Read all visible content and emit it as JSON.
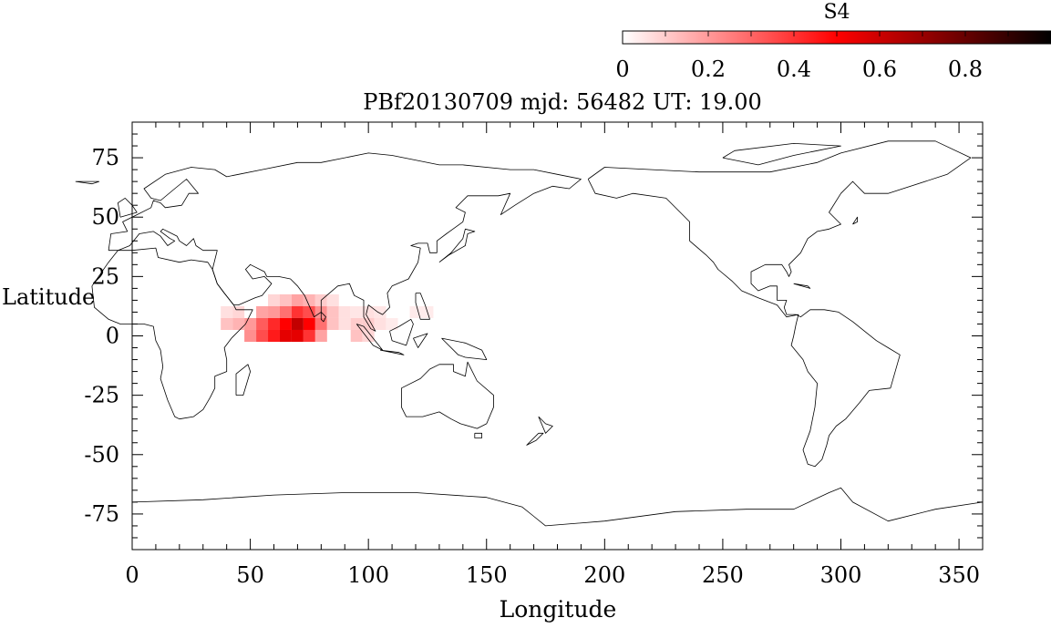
{
  "map": {
    "title": "PBf20130709  mjd: 56482  UT:  19.00",
    "xlabel": "Longitude",
    "ylabel": "Latitude",
    "xlim": [
      0,
      360
    ],
    "ylim": [
      -90,
      90
    ],
    "x_ticks": [
      0,
      50,
      100,
      150,
      200,
      250,
      300,
      350
    ],
    "x_tick_labels": [
      "0",
      "50",
      "100",
      "150",
      "200",
      "250",
      "300",
      "350"
    ],
    "y_ticks": [
      75,
      50,
      25,
      0,
      -25,
      -50,
      -75
    ],
    "y_tick_labels": [
      "75",
      "50",
      "25",
      "0",
      "-25",
      "-50",
      "-75"
    ],
    "coastline_color": "#000000"
  },
  "colorbar": {
    "label": "S4",
    "range": [
      0,
      1
    ],
    "ticks": [
      0,
      0.2,
      0.4,
      0.6,
      0.8
    ],
    "tick_labels": [
      "0",
      "0.2",
      "0.4",
      "0.6",
      "0.8"
    ],
    "colors": [
      "#ffffff",
      "#ff0000",
      "#000000"
    ]
  },
  "s4_cells": [
    {
      "lon": 40,
      "lat": 10,
      "s4": 0.06
    },
    {
      "lon": 45,
      "lat": 10,
      "s4": 0.08
    },
    {
      "lon": 40,
      "lat": 5,
      "s4": 0.12
    },
    {
      "lon": 45,
      "lat": 5,
      "s4": 0.15
    },
    {
      "lon": 50,
      "lat": 5,
      "s4": 0.2
    },
    {
      "lon": 50,
      "lat": 0,
      "s4": 0.22
    },
    {
      "lon": 55,
      "lat": 10,
      "s4": 0.18
    },
    {
      "lon": 55,
      "lat": 5,
      "s4": 0.32
    },
    {
      "lon": 55,
      "lat": 0,
      "s4": 0.35
    },
    {
      "lon": 60,
      "lat": 15,
      "s4": 0.08
    },
    {
      "lon": 60,
      "lat": 10,
      "s4": 0.2
    },
    {
      "lon": 60,
      "lat": 5,
      "s4": 0.42
    },
    {
      "lon": 60,
      "lat": 0,
      "s4": 0.45
    },
    {
      "lon": 65,
      "lat": 15,
      "s4": 0.12
    },
    {
      "lon": 65,
      "lat": 10,
      "s4": 0.28
    },
    {
      "lon": 65,
      "lat": 5,
      "s4": 0.5
    },
    {
      "lon": 65,
      "lat": 0,
      "s4": 0.55
    },
    {
      "lon": 70,
      "lat": 15,
      "s4": 0.18
    },
    {
      "lon": 70,
      "lat": 10,
      "s4": 0.4
    },
    {
      "lon": 70,
      "lat": 5,
      "s4": 0.62
    },
    {
      "lon": 70,
      "lat": 0,
      "s4": 0.55
    },
    {
      "lon": 75,
      "lat": 15,
      "s4": 0.15
    },
    {
      "lon": 75,
      "lat": 10,
      "s4": 0.35
    },
    {
      "lon": 75,
      "lat": 5,
      "s4": 0.5
    },
    {
      "lon": 75,
      "lat": 0,
      "s4": 0.4
    },
    {
      "lon": 80,
      "lat": 15,
      "s4": 0.1
    },
    {
      "lon": 80,
      "lat": 10,
      "s4": 0.22
    },
    {
      "lon": 80,
      "lat": 5,
      "s4": 0.28
    },
    {
      "lon": 80,
      "lat": 0,
      "s4": 0.18
    },
    {
      "lon": 85,
      "lat": 15,
      "s4": 0.06
    },
    {
      "lon": 85,
      "lat": 10,
      "s4": 0.12
    },
    {
      "lon": 85,
      "lat": 5,
      "s4": 0.12
    },
    {
      "lon": 90,
      "lat": 10,
      "s4": 0.06
    },
    {
      "lon": 90,
      "lat": 5,
      "s4": 0.06
    },
    {
      "lon": 95,
      "lat": 10,
      "s4": 0.05
    },
    {
      "lon": 95,
      "lat": 5,
      "s4": 0.1
    },
    {
      "lon": 95,
      "lat": 0,
      "s4": 0.12
    },
    {
      "lon": 100,
      "lat": 10,
      "s4": 0.06
    },
    {
      "lon": 100,
      "lat": 5,
      "s4": 0.1
    },
    {
      "lon": 100,
      "lat": 0,
      "s4": 0.08
    },
    {
      "lon": 105,
      "lat": 10,
      "s4": 0.05
    },
    {
      "lon": 105,
      "lat": 5,
      "s4": 0.06
    },
    {
      "lon": 110,
      "lat": 5,
      "s4": 0.04
    },
    {
      "lon": 120,
      "lat": 10,
      "s4": 0.04
    },
    {
      "lon": 125,
      "lat": 10,
      "s4": 0.04
    }
  ],
  "coastlines": [
    [
      [
        -17,
        21
      ],
      [
        -16,
        12
      ],
      [
        -10,
        7
      ],
      [
        -5,
        5
      ],
      [
        5,
        5
      ],
      [
        9,
        4
      ],
      [
        10,
        -2
      ],
      [
        12,
        -6
      ],
      [
        13,
        -13
      ],
      [
        12,
        -18
      ],
      [
        15,
        -27
      ],
      [
        18,
        -34
      ],
      [
        20,
        -35
      ],
      [
        26,
        -34
      ],
      [
        30,
        -31
      ],
      [
        33,
        -26
      ],
      [
        35,
        -22
      ],
      [
        35,
        -17
      ],
      [
        40,
        -15
      ],
      [
        40,
        -10
      ],
      [
        39,
        -5
      ],
      [
        42,
        -1
      ],
      [
        48,
        5
      ],
      [
        51,
        11
      ],
      [
        44,
        11
      ],
      [
        43,
        13
      ],
      [
        39,
        18
      ],
      [
        36,
        22
      ],
      [
        34,
        28
      ],
      [
        32,
        31
      ],
      [
        25,
        32
      ],
      [
        20,
        31
      ],
      [
        11,
        33
      ],
      [
        10,
        37
      ],
      [
        0,
        36
      ],
      [
        -6,
        36
      ],
      [
        -10,
        31
      ],
      [
        -17,
        21
      ]
    ],
    [
      [
        44,
        -25
      ],
      [
        47,
        -25
      ],
      [
        50,
        -15
      ],
      [
        49,
        -12
      ],
      [
        44,
        -16
      ],
      [
        44,
        -25
      ]
    ],
    [
      [
        -10,
        36
      ],
      [
        -9,
        43
      ],
      [
        -2,
        44
      ],
      [
        -4,
        48
      ],
      [
        2,
        51
      ],
      [
        8,
        54
      ],
      [
        9,
        57
      ],
      [
        12,
        56
      ],
      [
        14,
        54
      ],
      [
        21,
        55
      ],
      [
        24,
        60
      ],
      [
        28,
        60
      ],
      [
        23,
        66
      ],
      [
        18,
        62
      ],
      [
        12,
        57
      ],
      [
        8,
        58
      ],
      [
        5,
        62
      ],
      [
        14,
        68
      ],
      [
        25,
        71
      ],
      [
        35,
        70
      ],
      [
        40,
        67
      ],
      [
        45,
        68
      ],
      [
        55,
        70
      ],
      [
        70,
        73
      ],
      [
        80,
        73
      ],
      [
        100,
        77
      ],
      [
        110,
        76
      ],
      [
        130,
        72
      ],
      [
        140,
        72
      ],
      [
        160,
        70
      ],
      [
        170,
        70
      ],
      [
        180,
        68
      ],
      [
        190,
        66
      ],
      [
        185,
        62
      ],
      [
        178,
        63
      ],
      [
        170,
        60
      ],
      [
        162,
        55
      ],
      [
        156,
        51
      ],
      [
        160,
        60
      ],
      [
        155,
        59
      ],
      [
        142,
        59
      ],
      [
        137,
        54
      ],
      [
        141,
        52
      ],
      [
        140,
        48
      ],
      [
        133,
        43
      ],
      [
        129,
        40
      ],
      [
        129,
        35
      ],
      [
        126,
        35
      ],
      [
        125,
        39
      ],
      [
        121,
        39
      ],
      [
        118,
        38
      ],
      [
        122,
        37
      ],
      [
        121,
        31
      ],
      [
        117,
        24
      ],
      [
        110,
        21
      ],
      [
        108,
        18
      ],
      [
        109,
        12
      ],
      [
        106,
        9
      ],
      [
        104,
        10
      ],
      [
        100,
        13
      ],
      [
        99,
        9
      ],
      [
        103,
        2
      ],
      [
        101,
        3
      ],
      [
        98,
        8
      ],
      [
        98,
        15
      ],
      [
        94,
        17
      ],
      [
        92,
        22
      ],
      [
        87,
        21
      ],
      [
        80,
        15
      ],
      [
        80,
        10
      ],
      [
        77,
        8
      ],
      [
        73,
        17
      ],
      [
        70,
        21
      ],
      [
        67,
        24
      ],
      [
        62,
        25
      ],
      [
        57,
        25
      ],
      [
        56,
        27
      ],
      [
        50,
        30
      ],
      [
        48,
        28
      ],
      [
        51,
        24
      ],
      [
        56,
        25
      ],
      [
        59,
        22
      ],
      [
        55,
        17
      ],
      [
        52,
        16
      ],
      [
        45,
        13
      ],
      [
        43,
        13
      ],
      [
        39,
        18
      ],
      [
        36,
        22
      ],
      [
        34,
        28
      ],
      [
        36,
        36
      ],
      [
        30,
        36
      ],
      [
        27,
        38
      ],
      [
        26,
        41
      ],
      [
        23,
        38
      ],
      [
        20,
        40
      ],
      [
        19,
        42
      ],
      [
        13,
        45
      ],
      [
        12,
        44
      ],
      [
        16,
        41
      ],
      [
        18,
        40
      ],
      [
        15,
        38
      ],
      [
        12,
        42
      ],
      [
        9,
        44
      ],
      [
        3,
        43
      ],
      [
        -1,
        38
      ],
      [
        -6,
        36
      ],
      [
        -10,
        36
      ]
    ],
    [
      [
        80,
        10
      ],
      [
        82,
        8
      ],
      [
        81,
        6
      ],
      [
        80,
        7
      ],
      [
        80,
        10
      ]
    ],
    [
      [
        95,
        5
      ],
      [
        98,
        4
      ],
      [
        106,
        -6
      ],
      [
        102,
        -4
      ],
      [
        95,
        5
      ]
    ],
    [
      [
        105,
        -6
      ],
      [
        115,
        -8
      ],
      [
        113,
        -7
      ],
      [
        105,
        -6
      ]
    ],
    [
      [
        109,
        2
      ],
      [
        113,
        4
      ],
      [
        118,
        7
      ],
      [
        119,
        5
      ],
      [
        117,
        -1
      ],
      [
        116,
        -4
      ],
      [
        110,
        -2
      ],
      [
        109,
        2
      ]
    ],
    [
      [
        119,
        -1
      ],
      [
        125,
        1
      ],
      [
        121,
        -5
      ],
      [
        119,
        -1
      ]
    ],
    [
      [
        131,
        -1
      ],
      [
        141,
        -3
      ],
      [
        148,
        -6
      ],
      [
        150,
        -10
      ],
      [
        141,
        -9
      ],
      [
        138,
        -8
      ],
      [
        131,
        -1
      ]
    ],
    [
      [
        120,
        18
      ],
      [
        122,
        18
      ],
      [
        124,
        13
      ],
      [
        126,
        7
      ],
      [
        122,
        7
      ],
      [
        120,
        14
      ],
      [
        120,
        18
      ]
    ],
    [
      [
        130,
        31
      ],
      [
        134,
        34
      ],
      [
        141,
        38
      ],
      [
        142,
        43
      ],
      [
        145,
        44
      ],
      [
        141,
        45
      ],
      [
        140,
        41
      ],
      [
        135,
        35
      ],
      [
        130,
        31
      ]
    ],
    [
      [
        114,
        -22
      ],
      [
        114,
        -30
      ],
      [
        116,
        -34
      ],
      [
        123,
        -34
      ],
      [
        130,
        -32
      ],
      [
        135,
        -35
      ],
      [
        139,
        -37
      ],
      [
        146,
        -39
      ],
      [
        150,
        -37
      ],
      [
        153,
        -30
      ],
      [
        153,
        -25
      ],
      [
        146,
        -19
      ],
      [
        142,
        -11
      ],
      [
        141,
        -17
      ],
      [
        136,
        -15
      ],
      [
        136,
        -12
      ],
      [
        130,
        -12
      ],
      [
        126,
        -14
      ],
      [
        122,
        -18
      ],
      [
        114,
        -22
      ]
    ],
    [
      [
        145,
        -41
      ],
      [
        148,
        -41
      ],
      [
        148,
        -43
      ],
      [
        145,
        -43
      ],
      [
        145,
        -41
      ]
    ],
    [
      [
        172,
        -34
      ],
      [
        175,
        -37
      ],
      [
        178,
        -38
      ],
      [
        175,
        -41
      ],
      [
        172,
        -34
      ]
    ],
    [
      [
        172,
        -41
      ],
      [
        174,
        -41
      ],
      [
        171,
        -44
      ],
      [
        167,
        -46
      ],
      [
        172,
        -41
      ]
    ],
    [
      [
        193,
        66
      ],
      [
        200,
        71
      ],
      [
        220,
        70
      ],
      [
        240,
        69
      ],
      [
        270,
        69
      ],
      [
        290,
        73
      ],
      [
        300,
        77
      ],
      [
        320,
        82
      ],
      [
        340,
        82
      ],
      [
        355,
        75
      ],
      [
        345,
        68
      ],
      [
        320,
        60
      ],
      [
        310,
        60
      ],
      [
        305,
        65
      ],
      [
        300,
        60
      ],
      [
        295,
        52
      ],
      [
        300,
        47
      ],
      [
        295,
        45
      ],
      [
        290,
        44
      ],
      [
        286,
        41
      ],
      [
        283,
        35
      ],
      [
        278,
        30
      ],
      [
        279,
        27
      ],
      [
        278,
        25
      ],
      [
        277,
        27
      ],
      [
        275,
        30
      ],
      [
        268,
        30
      ],
      [
        262,
        27
      ],
      [
        262,
        22
      ],
      [
        265,
        19
      ],
      [
        270,
        21
      ],
      [
        273,
        21
      ],
      [
        273,
        15
      ],
      [
        277,
        15
      ],
      [
        276,
        12
      ],
      [
        277,
        9
      ],
      [
        281,
        9
      ],
      [
        283,
        8
      ],
      [
        287,
        11
      ],
      [
        293,
        11
      ],
      [
        299,
        10
      ],
      [
        305,
        6
      ],
      [
        310,
        2
      ],
      [
        315,
        -2
      ],
      [
        320,
        -5
      ],
      [
        325,
        -8
      ],
      [
        321,
        -22
      ],
      [
        312,
        -23
      ],
      [
        308,
        -28
      ],
      [
        302,
        -35
      ],
      [
        298,
        -38
      ],
      [
        295,
        -42
      ],
      [
        294,
        -46
      ],
      [
        292,
        -52
      ],
      [
        289,
        -55
      ],
      [
        286,
        -54
      ],
      [
        284,
        -48
      ],
      [
        287,
        -40
      ],
      [
        289,
        -30
      ],
      [
        290,
        -20
      ],
      [
        286,
        -15
      ],
      [
        284,
        -10
      ],
      [
        279,
        -4
      ],
      [
        280,
        0
      ],
      [
        281,
        5
      ],
      [
        282,
        9
      ],
      [
        277,
        8
      ],
      [
        273,
        13
      ],
      [
        265,
        16
      ],
      [
        258,
        19
      ],
      [
        254,
        23
      ],
      [
        248,
        28
      ],
      [
        246,
        31
      ],
      [
        243,
        34
      ],
      [
        236,
        40
      ],
      [
        236,
        48
      ],
      [
        232,
        52
      ],
      [
        226,
        58
      ],
      [
        212,
        60
      ],
      [
        205,
        58
      ],
      [
        196,
        60
      ],
      [
        194,
        64
      ],
      [
        193,
        66
      ]
    ],
    [
      [
        250,
        75
      ],
      [
        265,
        72
      ],
      [
        280,
        76
      ],
      [
        290,
        78
      ],
      [
        300,
        80
      ],
      [
        280,
        81
      ],
      [
        255,
        78
      ],
      [
        250,
        75
      ]
    ],
    [
      [
        305,
        47
      ],
      [
        307,
        48
      ],
      [
        307,
        50
      ],
      [
        305,
        47
      ]
    ],
    [
      [
        280,
        22
      ],
      [
        286,
        21
      ],
      [
        287,
        20
      ],
      [
        280,
        22
      ]
    ],
    [
      [
        -5,
        50
      ],
      [
        2,
        52
      ],
      [
        0,
        55
      ],
      [
        -3,
        58
      ],
      [
        -6,
        56
      ],
      [
        -5,
        50
      ]
    ],
    [
      [
        -24,
        65
      ],
      [
        -14,
        65
      ],
      [
        -17,
        64
      ],
      [
        -24,
        65
      ]
    ],
    [
      [
        0,
        -70
      ],
      [
        30,
        -69
      ],
      [
        60,
        -67
      ],
      [
        90,
        -66
      ],
      [
        120,
        -66
      ],
      [
        150,
        -68
      ],
      [
        165,
        -72
      ],
      [
        170,
        -76
      ],
      [
        175,
        -80
      ],
      [
        200,
        -78
      ],
      [
        230,
        -74
      ],
      [
        260,
        -73
      ],
      [
        280,
        -73
      ],
      [
        295,
        -66
      ],
      [
        300,
        -64
      ],
      [
        305,
        -70
      ],
      [
        320,
        -78
      ],
      [
        340,
        -73
      ],
      [
        360,
        -70
      ]
    ]
  ]
}
